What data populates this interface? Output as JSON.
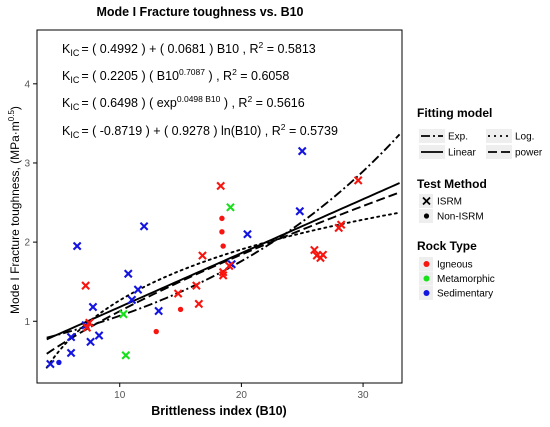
{
  "chart_data": {
    "type": "scatter",
    "title": "Mode I Fracture toughness vs. B10",
    "xlabel": "Brittleness index (B10)",
    "ylabel": {
      "main": "Mode I Fracture toughness, (MPa·m",
      "exp": "0.5",
      "close": ")"
    },
    "xlim": [
      3.2,
      33.2
    ],
    "ylim": [
      0.22,
      4.68
    ],
    "x_ticks": [
      10,
      20,
      30
    ],
    "y_ticks": [
      1,
      2,
      3,
      4
    ],
    "grid": false,
    "legend_position": "right",
    "equations": [
      {
        "lhs": "K",
        "lhs_sub": "IC",
        "rhs": "= ( 0.4992 ) + ( 0.0681 ) B10 ,  R",
        "r2_sup": "2",
        "r2_value": " = 0.5813"
      },
      {
        "lhs": "K",
        "lhs_sub": "IC",
        "rhs": "= ( 0.2205 ) ( B10",
        "rhs_sup": "0.7087",
        "rhs_tail": " ) ,  R",
        "r2_sup": "2",
        "r2_value": " = 0.6058"
      },
      {
        "lhs": "K",
        "lhs_sub": "IC",
        "rhs": "= ( 0.6498 ) ( exp",
        "rhs_sup": "0.0498 B10",
        "rhs_tail": " ) ,  R",
        "r2_sup": "2",
        "r2_value": " = 0.5616"
      },
      {
        "lhs": "K",
        "lhs_sub": "IC",
        "rhs": "= ( -0.8719 ) + ( 0.9278 ) ln(B10) ,  R",
        "r2_sup": "2",
        "r2_value": " = 0.5739"
      }
    ],
    "fits": [
      {
        "model": "Linear",
        "kind": "linear",
        "a": 0.4992,
        "b": 0.0681,
        "dash": "solid"
      },
      {
        "model": "power",
        "kind": "power",
        "a": 0.2205,
        "b": 0.7087,
        "dash": "long-dash"
      },
      {
        "model": "Exp.",
        "kind": "exp",
        "a": 0.6498,
        "b": 0.0498,
        "dash": "dot-dash"
      },
      {
        "model": "Log.",
        "kind": "log",
        "a": -0.8719,
        "b": 0.9278,
        "dash": "dotted"
      }
    ],
    "fit_x_range": [
      4,
      33
    ],
    "legends": {
      "fitting_model": {
        "title": "Fitting model",
        "entries": [
          {
            "label": "Exp.",
            "dash": "dot-dash"
          },
          {
            "label": "Log.",
            "dash": "dotted"
          },
          {
            "label": "Linear",
            "dash": "solid"
          },
          {
            "label": "power",
            "dash": "long-dash"
          }
        ]
      },
      "test_method": {
        "title": "Test Method",
        "entries": [
          {
            "label": "ISRM",
            "shape": "x"
          },
          {
            "label": "Non-ISRM",
            "shape": "dot"
          }
        ]
      },
      "rock_type": {
        "title": "Rock Type",
        "entries": [
          {
            "label": "Igneous",
            "color": "#f8150f"
          },
          {
            "label": "Metamorphic",
            "color": "#18e01a"
          },
          {
            "label": "Sedimentary",
            "color": "#1414e0"
          }
        ]
      }
    },
    "colors": {
      "Igneous": "#f8150f",
      "Metamorphic": "#18e01a",
      "Sedimentary": "#1414e0"
    },
    "points": [
      {
        "x": 4.3,
        "y": 0.46,
        "rock": "Sedimentary",
        "method": "ISRM"
      },
      {
        "x": 5.0,
        "y": 0.48,
        "rock": "Sedimentary",
        "method": "Non-ISRM"
      },
      {
        "x": 6.0,
        "y": 0.6,
        "rock": "Sedimentary",
        "method": "ISRM"
      },
      {
        "x": 6.0,
        "y": 0.8,
        "rock": "Sedimentary",
        "method": "ISRM"
      },
      {
        "x": 6.5,
        "y": 1.95,
        "rock": "Sedimentary",
        "method": "ISRM"
      },
      {
        "x": 7.2,
        "y": 0.95,
        "rock": "Sedimentary",
        "method": "ISRM"
      },
      {
        "x": 7.6,
        "y": 0.74,
        "rock": "Sedimentary",
        "method": "ISRM"
      },
      {
        "x": 7.8,
        "y": 1.18,
        "rock": "Sedimentary",
        "method": "ISRM"
      },
      {
        "x": 8.3,
        "y": 0.82,
        "rock": "Sedimentary",
        "method": "ISRM"
      },
      {
        "x": 10.7,
        "y": 1.6,
        "rock": "Sedimentary",
        "method": "ISRM"
      },
      {
        "x": 11.0,
        "y": 1.27,
        "rock": "Sedimentary",
        "method": "ISRM"
      },
      {
        "x": 11.5,
        "y": 1.4,
        "rock": "Sedimentary",
        "method": "ISRM"
      },
      {
        "x": 12.0,
        "y": 2.2,
        "rock": "Sedimentary",
        "method": "ISRM"
      },
      {
        "x": 13.2,
        "y": 1.13,
        "rock": "Sedimentary",
        "method": "ISRM"
      },
      {
        "x": 19.2,
        "y": 1.72,
        "rock": "Sedimentary",
        "method": "ISRM"
      },
      {
        "x": 20.5,
        "y": 2.1,
        "rock": "Sedimentary",
        "method": "ISRM"
      },
      {
        "x": 24.8,
        "y": 2.39,
        "rock": "Sedimentary",
        "method": "ISRM"
      },
      {
        "x": 25.0,
        "y": 3.15,
        "rock": "Sedimentary",
        "method": "ISRM"
      },
      {
        "x": 7.2,
        "y": 1.45,
        "rock": "Igneous",
        "method": "ISRM"
      },
      {
        "x": 7.3,
        "y": 0.92,
        "rock": "Igneous",
        "method": "ISRM"
      },
      {
        "x": 7.5,
        "y": 0.98,
        "rock": "Igneous",
        "method": "ISRM"
      },
      {
        "x": 13.0,
        "y": 0.87,
        "rock": "Igneous",
        "method": "Non-ISRM"
      },
      {
        "x": 14.8,
        "y": 1.35,
        "rock": "Igneous",
        "method": "ISRM"
      },
      {
        "x": 15.0,
        "y": 1.15,
        "rock": "Igneous",
        "method": "Non-ISRM"
      },
      {
        "x": 16.3,
        "y": 1.45,
        "rock": "Igneous",
        "method": "ISRM"
      },
      {
        "x": 16.5,
        "y": 1.22,
        "rock": "Igneous",
        "method": "ISRM"
      },
      {
        "x": 16.8,
        "y": 1.83,
        "rock": "Igneous",
        "method": "ISRM"
      },
      {
        "x": 18.3,
        "y": 2.71,
        "rock": "Igneous",
        "method": "ISRM"
      },
      {
        "x": 18.4,
        "y": 2.3,
        "rock": "Igneous",
        "method": "Non-ISRM"
      },
      {
        "x": 18.4,
        "y": 2.13,
        "rock": "Igneous",
        "method": "Non-ISRM"
      },
      {
        "x": 18.5,
        "y": 1.95,
        "rock": "Igneous",
        "method": "Non-ISRM"
      },
      {
        "x": 18.5,
        "y": 1.58,
        "rock": "Igneous",
        "method": "ISRM"
      },
      {
        "x": 18.5,
        "y": 1.62,
        "rock": "Igneous",
        "method": "ISRM"
      },
      {
        "x": 19.0,
        "y": 1.7,
        "rock": "Igneous",
        "method": "ISRM"
      },
      {
        "x": 26.0,
        "y": 1.9,
        "rock": "Igneous",
        "method": "ISRM"
      },
      {
        "x": 26.2,
        "y": 1.83,
        "rock": "Igneous",
        "method": "ISRM"
      },
      {
        "x": 26.5,
        "y": 1.8,
        "rock": "Igneous",
        "method": "ISRM"
      },
      {
        "x": 26.7,
        "y": 1.84,
        "rock": "Igneous",
        "method": "ISRM"
      },
      {
        "x": 28.0,
        "y": 2.18,
        "rock": "Igneous",
        "method": "ISRM"
      },
      {
        "x": 28.2,
        "y": 2.22,
        "rock": "Igneous",
        "method": "ISRM"
      },
      {
        "x": 29.6,
        "y": 2.78,
        "rock": "Igneous",
        "method": "ISRM"
      },
      {
        "x": 10.3,
        "y": 1.09,
        "rock": "Metamorphic",
        "method": "ISRM"
      },
      {
        "x": 10.5,
        "y": 0.57,
        "rock": "Metamorphic",
        "method": "ISRM"
      },
      {
        "x": 19.1,
        "y": 2.44,
        "rock": "Metamorphic",
        "method": "ISRM"
      }
    ]
  }
}
